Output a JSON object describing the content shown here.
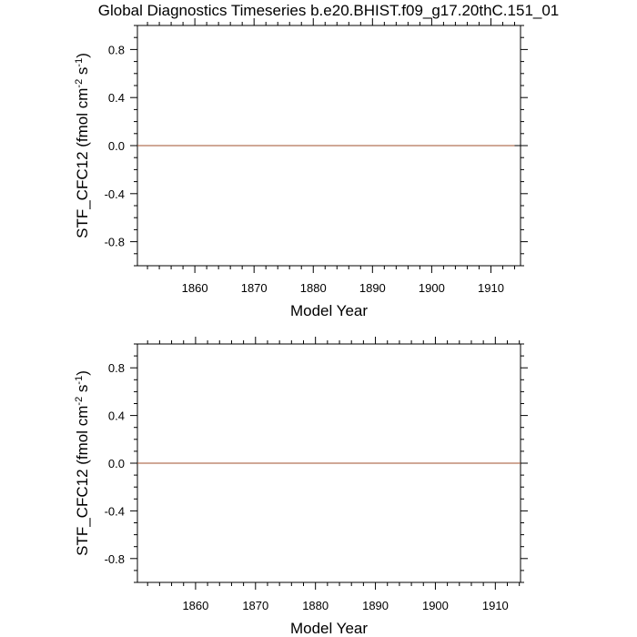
{
  "figure": {
    "title": "Global Diagnostics Timeseries b.e20.BHIST.f09_g17.20thC.151_01"
  },
  "chart_data": [
    {
      "type": "line",
      "title": "Global Diagnostics Timeseries b.e20.BHIST.f09_g17.20thC.151_01",
      "xlabel": "Model Year",
      "ylabel": "STF_CFC12 (fmol cm^-2 s^-1)",
      "xlim": [
        1850.3,
        1915.0
      ],
      "ylim": [
        -1.0,
        1.0
      ],
      "x_ticks": [
        1860,
        1870,
        1880,
        1890,
        1900,
        1910
      ],
      "y_ticks": [
        -0.8,
        -0.4,
        0.0,
        0.4,
        0.8
      ],
      "y_tick_labels": [
        "-0.8",
        "-0.4",
        "0.0",
        "0.4",
        "0.8"
      ],
      "reference_line": 0.0,
      "grid": false,
      "series": [
        {
          "color": "#a0522d",
          "x": [
            1850.3,
            1914.0
          ],
          "y": [
            0.0,
            0.0
          ]
        }
      ]
    },
    {
      "type": "line",
      "xlabel": "Model Year",
      "ylabel": "STF_CFC12 (fmol cm^-2 s^-1)",
      "xlim": [
        1850.3,
        1914.2
      ],
      "ylim": [
        -1.0,
        1.0
      ],
      "x_ticks": [
        1860,
        1870,
        1880,
        1890,
        1900,
        1910
      ],
      "y_ticks": [
        -0.8,
        -0.4,
        0.0,
        0.4,
        0.8
      ],
      "y_tick_labels": [
        "-0.8",
        "-0.4",
        "0.0",
        "0.4",
        "0.8"
      ],
      "reference_line": 0.0,
      "grid": false,
      "series": [
        {
          "color": "#a0522d",
          "x": [
            1850.3,
            1914.2
          ],
          "y": [
            0.0,
            0.0
          ]
        }
      ]
    }
  ]
}
